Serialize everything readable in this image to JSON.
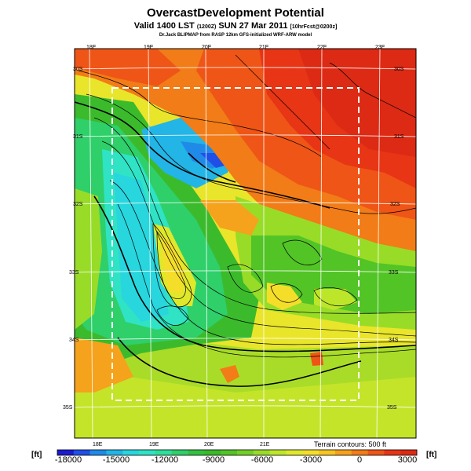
{
  "header": {
    "title": "OvercastDevelopment Potential",
    "valid_main": "Valid 1400 LST",
    "valid_utc": "(1200Z)",
    "valid_date": "SUN 27 Mar 2011",
    "valid_forecast": "[10hrFcst@0200z]",
    "model_line": "Dr.Jack BLIPMAP from RASP 12km GFS-initialized WRF-ARW model"
  },
  "map": {
    "longitude_labels_top": [
      "18E",
      "19E",
      "20E",
      "21E",
      "22E",
      "23E"
    ],
    "longitude_labels_bottom": [
      "18E",
      "19E",
      "20E",
      "21E"
    ],
    "latitude_labels_left": [
      "30S",
      "31S",
      "32S",
      "33S",
      "34S",
      "35S"
    ],
    "latitude_labels_right": [
      "30S",
      "31S",
      "32S",
      "33S",
      "34S",
      "35S"
    ],
    "terrain_contours_label": "Terrain contours: 500 ft"
  },
  "colorbar": {
    "unit_left": "[ft]",
    "unit_right": "[ft]",
    "tick_labels": [
      "-18000",
      "-15000",
      "-12000",
      "-9000",
      "-6000",
      "-3000",
      "0",
      "3000"
    ],
    "colors": [
      "#1a1acf",
      "#1f4fe6",
      "#1f8ae8",
      "#22b5e6",
      "#28d6de",
      "#2fe3c4",
      "#2ddf9a",
      "#2fcf6a",
      "#34c040",
      "#3ab92a",
      "#52c426",
      "#73cf26",
      "#98dc28",
      "#bde62a",
      "#dfe82b",
      "#f5de2a",
      "#f7c522",
      "#f5a21c",
      "#f27c17",
      "#ef5517",
      "#e73516",
      "#dc2a14"
    ]
  }
}
